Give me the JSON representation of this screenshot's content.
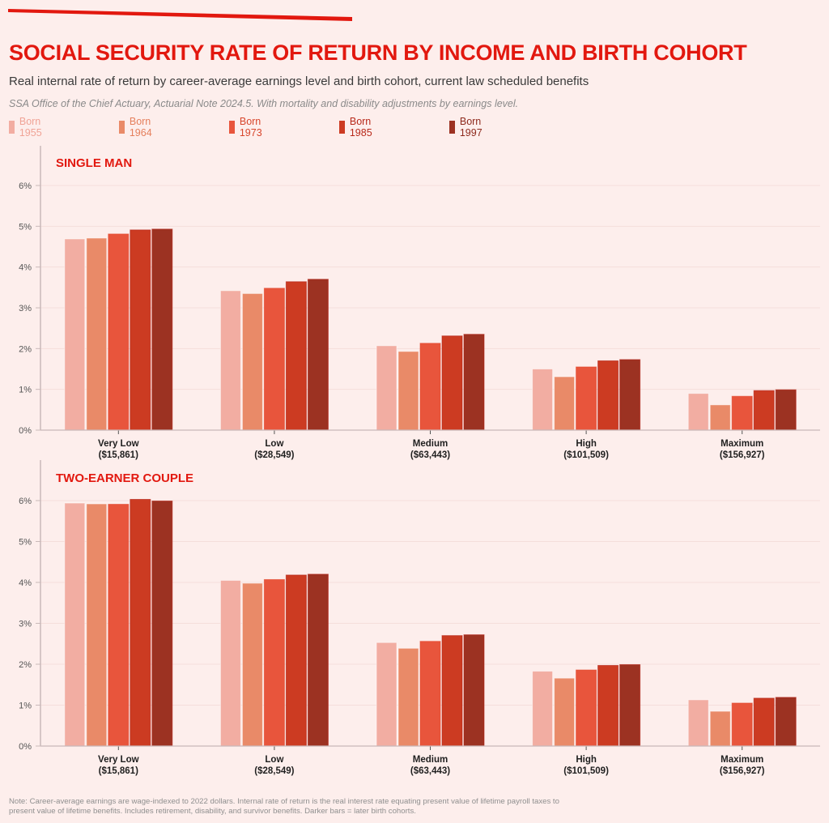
{
  "header": {
    "title": "SOCIAL SECURITY RATE OF RETURN BY INCOME AND BIRTH COHORT",
    "subtitle": "Real internal rate of return by career-average earnings level and birth cohort, current law scheduled benefits",
    "source": "SSA Office of the Chief Actuary, Actuarial Note 2024.5. With mortality and disability adjustments by earnings level."
  },
  "legend": [
    {
      "label": "Born 1955",
      "color": "#f2ada2",
      "text_color": "#f0a396"
    },
    {
      "label": "Born 1964",
      "color": "#e98a68",
      "text_color": "#e57f5c"
    },
    {
      "label": "Born 1973",
      "color": "#e8553c",
      "text_color": "#d8462c"
    },
    {
      "label": "Born 1985",
      "color": "#cc3b22",
      "text_color": "#b8291a"
    },
    {
      "label": "Born 1997",
      "color": "#9c3222",
      "text_color": "#8e2a1d"
    }
  ],
  "colors": {
    "accent": "#e2180f",
    "background": "#fdeeec",
    "axis": "#c9b9b9",
    "grid": "#f5dedb",
    "tick_text": "#555555",
    "category_text": "#1f1f1f"
  },
  "chart_data": [
    {
      "type": "bar",
      "title": "SINGLE MAN",
      "xlabel": "",
      "ylabel": "",
      "ylim": [
        0,
        6
      ],
      "yticks": [
        0,
        1,
        2,
        3,
        4,
        5,
        6
      ],
      "ytick_labels": [
        "0%",
        "1%",
        "2%",
        "3%",
        "4%",
        "5%",
        "6%"
      ],
      "grid": true,
      "legend_position": "top-left",
      "categories": [
        "Very Low",
        "Low",
        "Medium",
        "High",
        "Maximum"
      ],
      "category_sublabels": [
        "($15,861)",
        "($28,549)",
        "($63,443)",
        "($101,509)",
        "($156,927)"
      ],
      "series": [
        {
          "name": "Born 1955",
          "values": [
            4.69,
            3.42,
            2.07,
            1.5,
            0.9
          ]
        },
        {
          "name": "Born 1964",
          "values": [
            4.71,
            3.35,
            1.93,
            1.31,
            0.62
          ]
        },
        {
          "name": "Born 1973",
          "values": [
            4.81,
            3.48,
            2.13,
            1.55,
            0.83
          ]
        },
        {
          "name": "Born 1985",
          "values": [
            4.91,
            3.64,
            2.31,
            1.7,
            0.97
          ]
        },
        {
          "name": "Born 1997",
          "values": [
            4.93,
            3.7,
            2.35,
            1.73,
            0.99
          ]
        }
      ]
    },
    {
      "type": "bar",
      "title": "TWO-EARNER COUPLE",
      "xlabel": "",
      "ylabel": "",
      "ylim": [
        0,
        6
      ],
      "yticks": [
        0,
        1,
        2,
        3,
        4,
        5,
        6
      ],
      "ytick_labels": [
        "0%",
        "1%",
        "2%",
        "3%",
        "4%",
        "5%",
        "6%"
      ],
      "grid": true,
      "legend_position": "top-left",
      "categories": [
        "Very Low",
        "Low",
        "Medium",
        "High",
        "Maximum"
      ],
      "category_sublabels": [
        "($15,861)",
        "($28,549)",
        "($63,443)",
        "($101,509)",
        "($156,927)"
      ],
      "series": [
        {
          "name": "Born 1955",
          "values": [
            5.94,
            4.05,
            2.53,
            1.83,
            1.13
          ]
        },
        {
          "name": "Born 1964",
          "values": [
            5.92,
            3.98,
            2.39,
            1.66,
            0.85
          ]
        },
        {
          "name": "Born 1973",
          "values": [
            5.91,
            4.07,
            2.56,
            1.86,
            1.05
          ]
        },
        {
          "name": "Born 1985",
          "values": [
            6.03,
            4.18,
            2.7,
            1.97,
            1.17
          ]
        },
        {
          "name": "Born 1997",
          "values": [
            5.99,
            4.2,
            2.72,
            1.99,
            1.19
          ]
        }
      ]
    }
  ],
  "footer": {
    "note": "Note: Career-average earnings are wage-indexed to 2022 dollars. Internal rate of return is the real interest rate equating present value of lifetime payroll taxes to present value of lifetime benefits. Includes retirement, disability, and survivor benefits. Darker bars = later birth cohorts."
  }
}
